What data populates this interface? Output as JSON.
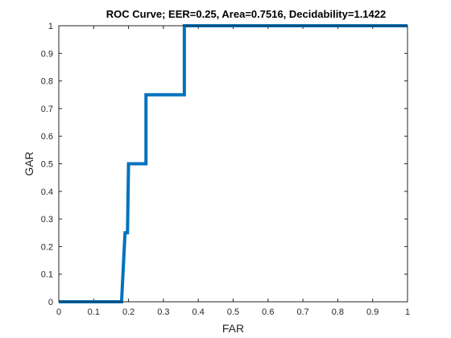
{
  "chart_data": {
    "type": "line",
    "title": "ROC Curve;   EER=0.25,   Area=0.7516,   Decidability=1.1422",
    "xlabel": "FAR",
    "ylabel": "GAR",
    "xlim": [
      0,
      1
    ],
    "ylim": [
      0,
      1
    ],
    "xticks": [
      "0",
      "0.1",
      "0.2",
      "0.3",
      "0.4",
      "0.5",
      "0.6",
      "0.7",
      "0.8",
      "0.9",
      "1"
    ],
    "yticks": [
      "0",
      "0.1",
      "0.2",
      "0.3",
      "0.4",
      "0.5",
      "0.6",
      "0.7",
      "0.8",
      "0.9",
      "1"
    ],
    "grid": false,
    "series": [
      {
        "color": "#0072BD",
        "x": [
          0,
          0.18,
          0.19,
          0.193,
          0.197,
          0.2,
          0.25,
          0.25,
          0.36,
          0.36,
          1.0
        ],
        "y": [
          0,
          0,
          0.25,
          0.25,
          0.25,
          0.5,
          0.5,
          0.75,
          0.75,
          1.0,
          1.0
        ]
      }
    ]
  }
}
